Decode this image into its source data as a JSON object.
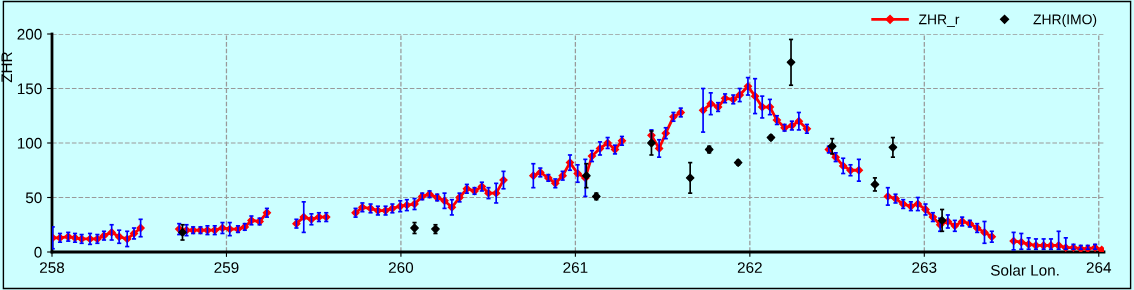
{
  "chart_data": {
    "type": "line",
    "ylabel": "ZHR",
    "xlabel": "Solar Lon.",
    "xlim": [
      258,
      264.03
    ],
    "xticks": [
      258,
      259,
      260,
      261,
      262,
      263,
      264
    ],
    "ylim": [
      0,
      200
    ],
    "yticks": [
      0,
      50,
      100,
      150,
      200
    ],
    "grid": true,
    "legend": "top right",
    "series": [
      {
        "name": "ZHR_r",
        "color": "#ff0000",
        "marker": "diamond",
        "line_style": "solid",
        "x": [
          258.004,
          258.046,
          258.093,
          258.132,
          258.17,
          258.218,
          258.26,
          258.298,
          258.342,
          258.385,
          258.431,
          258.47,
          258.508,
          258.6,
          258.729,
          258.771,
          258.809,
          258.851,
          258.891,
          258.933,
          258.977,
          259.019,
          259.066,
          259.105,
          259.143,
          259.19,
          259.232,
          259.3,
          259.401,
          259.443,
          259.487,
          259.53,
          259.572,
          259.65,
          259.74,
          259.779,
          259.826,
          259.868,
          259.912,
          259.951,
          259.996,
          260.034,
          260.078,
          260.122,
          260.164,
          260.208,
          260.25,
          260.292,
          260.336,
          260.378,
          260.422,
          260.464,
          260.502,
          260.546,
          260.588,
          260.67,
          260.759,
          260.799,
          260.845,
          260.885,
          260.927,
          260.969,
          261.013,
          261.057,
          261.095,
          261.141,
          261.185,
          261.227,
          261.267,
          261.35,
          261.436,
          261.48,
          261.518,
          261.562,
          261.604,
          261.67,
          261.732,
          261.776,
          261.818,
          261.858,
          261.905,
          261.942,
          261.989,
          262.03,
          262.071,
          262.115,
          262.155,
          262.199,
          262.241,
          262.281,
          262.327,
          262.39,
          262.453,
          262.492,
          262.535,
          262.577,
          262.625,
          262.7,
          262.791,
          262.835,
          262.879,
          262.923,
          262.963,
          263.007,
          263.049,
          263.091,
          263.135,
          263.175,
          263.217,
          263.261,
          263.303,
          263.345,
          263.387,
          263.45,
          263.512,
          263.556,
          263.598,
          263.64,
          263.684,
          263.726,
          263.77,
          263.811,
          263.855,
          263.897,
          263.937,
          263.979,
          264.017
        ],
        "values": [
          13,
          13,
          14,
          13,
          12,
          12,
          12,
          15,
          18,
          14,
          12,
          17,
          22,
          null,
          21,
          20,
          20,
          20,
          20,
          20,
          22,
          21,
          21,
          23,
          29,
          28,
          36,
          null,
          26,
          32,
          30,
          32,
          32,
          null,
          36,
          41,
          40,
          38,
          38,
          40,
          42,
          43,
          44,
          51,
          53,
          50,
          47,
          41,
          50,
          58,
          56,
          60,
          54,
          54,
          66,
          null,
          70,
          73,
          68,
          63,
          70,
          82,
          72,
          68,
          88,
          95,
          100,
          94,
          102,
          null,
          107,
          95,
          109,
          124,
          128,
          null,
          130,
          136,
          133,
          141,
          140,
          144,
          152,
          143,
          133,
          133,
          121,
          114,
          116,
          120,
          113,
          null,
          94,
          87,
          79,
          75,
          75,
          null,
          51,
          49,
          44,
          42,
          44,
          39,
          32,
          25,
          28,
          24,
          28,
          26,
          22,
          18,
          14,
          null,
          10,
          9,
          7,
          6,
          6,
          6,
          6,
          4,
          4,
          3,
          3,
          4,
          2
        ],
        "errors": [
          10,
          4,
          4,
          4,
          4,
          5,
          4,
          4,
          7,
          6,
          7,
          5,
          8,
          null,
          5,
          5,
          3,
          3,
          4,
          4,
          5,
          6,
          3,
          3,
          4,
          3,
          4,
          null,
          4,
          14,
          5,
          4,
          4,
          null,
          4,
          4,
          4,
          4,
          4,
          4,
          5,
          5,
          5,
          3,
          3,
          3,
          7,
          7,
          4,
          4,
          3,
          4,
          5,
          9,
          8,
          null,
          11,
          4,
          3,
          4,
          4,
          7,
          8,
          17,
          5,
          6,
          5,
          4,
          4,
          null,
          5,
          8,
          5,
          4,
          4,
          null,
          20,
          10,
          4,
          4,
          4,
          6,
          8,
          16,
          10,
          7,
          4,
          3,
          4,
          8,
          4,
          null,
          3,
          4,
          7,
          5,
          10,
          null,
          8,
          4,
          4,
          4,
          6,
          5,
          4,
          6,
          6,
          5,
          4,
          3,
          4,
          10,
          5,
          null,
          8,
          [
            2.5,
            17
          ],
          [
            2.5,
            13
          ],
          [
            2.5,
            12
          ],
          [
            2.5,
            12
          ],
          [
            2.5,
            12
          ],
          [
            2.5,
            19
          ],
          [
            2.5,
            13
          ],
          [
            2.5,
            7
          ],
          [
            2.5,
            6
          ],
          [
            2.5,
            6
          ],
          [
            2.5,
            7
          ],
          null
        ]
      },
      {
        "name": "ZHR(IMO)",
        "type": "scatter",
        "color": "#000000",
        "marker": "diamond",
        "x": [
          258.748,
          260.078,
          260.198,
          261.063,
          261.12,
          261.436,
          261.658,
          261.767,
          261.933,
          262.121,
          262.236,
          262.472,
          262.717,
          262.82,
          263.102
        ],
        "values": [
          18,
          22,
          21,
          70,
          51,
          100,
          68,
          94,
          82,
          105,
          174,
          97,
          62,
          96,
          29
        ],
        "errors": [
          7,
          5,
          4,
          11,
          3,
          11,
          14,
          3,
          2,
          2,
          21,
          7,
          6,
          9,
          10
        ]
      }
    ]
  }
}
